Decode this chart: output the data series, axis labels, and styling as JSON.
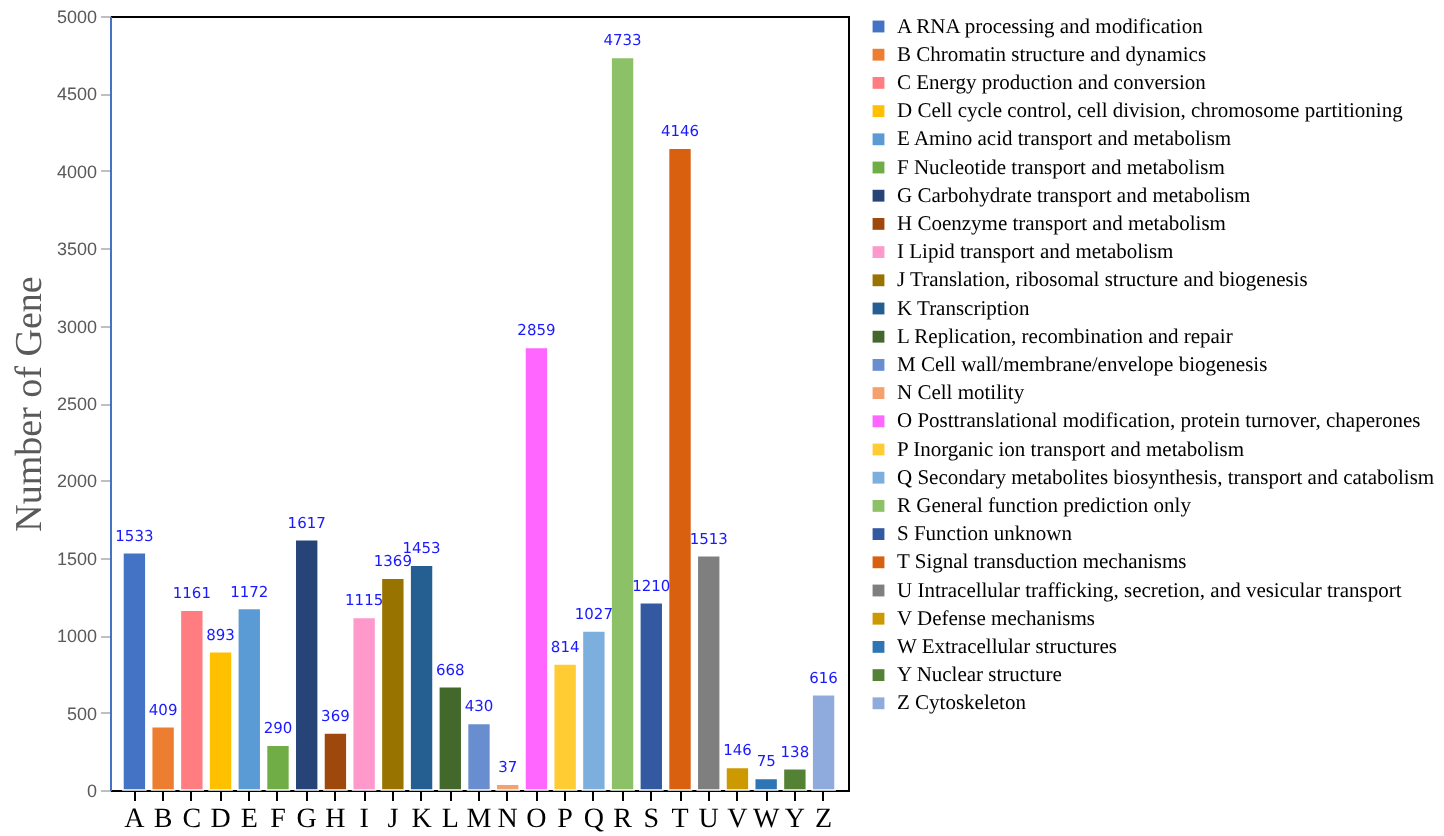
{
  "chart_data": {
    "type": "bar",
    "stacked": true,
    "ylabel": "Number of Gene",
    "categories": [
      "A",
      "B",
      "C",
      "D",
      "E",
      "F",
      "G",
      "H",
      "I",
      "J",
      "K",
      "L",
      "M",
      "N",
      "O",
      "P",
      "Q",
      "R",
      "S",
      "T",
      "U",
      "V",
      "W",
      "Y",
      "Z"
    ],
    "ylim": [
      0,
      5000
    ],
    "yticks": [
      0,
      500,
      1000,
      1500,
      2000,
      2500,
      3000,
      3500,
      4000,
      4500,
      5000
    ],
    "grid": false,
    "legend": "right",
    "data_labels": true,
    "series": [
      {
        "name": "A RNA processing and modification",
        "color": "#4472c4",
        "values": [
          1533,
          null,
          null,
          null,
          null,
          null,
          null,
          null,
          null,
          null,
          null,
          null,
          null,
          null,
          null,
          null,
          null,
          null,
          null,
          null,
          null,
          null,
          null,
          null,
          null
        ]
      },
      {
        "name": "B Chromatin structure and dynamics",
        "color": "#ed7d31",
        "values": [
          null,
          409,
          null,
          null,
          null,
          null,
          null,
          null,
          null,
          null,
          null,
          null,
          null,
          null,
          null,
          null,
          null,
          null,
          null,
          null,
          null,
          null,
          null,
          null,
          null
        ]
      },
      {
        "name": "C Energy production and conversion",
        "color": "#ff7c80",
        "values": [
          null,
          null,
          1161,
          null,
          null,
          null,
          null,
          null,
          null,
          null,
          null,
          null,
          null,
          null,
          null,
          null,
          null,
          null,
          null,
          null,
          null,
          null,
          null,
          null,
          null
        ]
      },
      {
        "name": "D Cell cycle control, cell division, chromosome partitioning",
        "color": "#ffc000",
        "values": [
          null,
          null,
          null,
          893,
          null,
          null,
          null,
          null,
          null,
          null,
          null,
          null,
          null,
          null,
          null,
          null,
          null,
          null,
          null,
          null,
          null,
          null,
          null,
          null,
          null
        ]
      },
      {
        "name": "E Amino acid transport and metabolism",
        "color": "#5b9bd5",
        "values": [
          null,
          null,
          null,
          null,
          1172,
          null,
          null,
          null,
          null,
          null,
          null,
          null,
          null,
          null,
          null,
          null,
          null,
          null,
          null,
          null,
          null,
          null,
          null,
          null,
          null
        ]
      },
      {
        "name": "F Nucleotide transport and metabolism",
        "color": "#70ad47",
        "values": [
          null,
          null,
          null,
          null,
          null,
          290,
          null,
          null,
          null,
          null,
          null,
          null,
          null,
          null,
          null,
          null,
          null,
          null,
          null,
          null,
          null,
          null,
          null,
          null,
          null
        ]
      },
      {
        "name": "G Carbohydrate transport and metabolism",
        "color": "#264478",
        "values": [
          null,
          null,
          null,
          null,
          null,
          null,
          1617,
          null,
          null,
          null,
          null,
          null,
          null,
          null,
          null,
          null,
          null,
          null,
          null,
          null,
          null,
          null,
          null,
          null,
          null
        ]
      },
      {
        "name": "H Coenzyme transport and metabolism",
        "color": "#9e480e",
        "values": [
          null,
          null,
          null,
          null,
          null,
          null,
          null,
          369,
          null,
          null,
          null,
          null,
          null,
          null,
          null,
          null,
          null,
          null,
          null,
          null,
          null,
          null,
          null,
          null,
          null
        ]
      },
      {
        "name": "I Lipid transport and metabolism",
        "color": "#ff99cc",
        "values": [
          null,
          null,
          null,
          null,
          null,
          null,
          null,
          null,
          1115,
          null,
          null,
          null,
          null,
          null,
          null,
          null,
          null,
          null,
          null,
          null,
          null,
          null,
          null,
          null,
          null
        ]
      },
      {
        "name": "J Translation, ribosomal structure and biogenesis",
        "color": "#997300",
        "values": [
          null,
          null,
          null,
          null,
          null,
          null,
          null,
          null,
          null,
          1369,
          null,
          null,
          null,
          null,
          null,
          null,
          null,
          null,
          null,
          null,
          null,
          null,
          null,
          null,
          null
        ]
      },
      {
        "name": "K Transcription",
        "color": "#255e91",
        "values": [
          null,
          null,
          null,
          null,
          null,
          null,
          null,
          null,
          null,
          null,
          1453,
          null,
          null,
          null,
          null,
          null,
          null,
          null,
          null,
          null,
          null,
          null,
          null,
          null,
          null
        ]
      },
      {
        "name": "L Replication, recombination and repair",
        "color": "#43682b",
        "values": [
          null,
          null,
          null,
          null,
          null,
          null,
          null,
          null,
          null,
          null,
          null,
          668,
          null,
          null,
          null,
          null,
          null,
          null,
          null,
          null,
          null,
          null,
          null,
          null,
          null
        ]
      },
      {
        "name": "M Cell wall/membrane/envelope biogenesis",
        "color": "#698ed0",
        "values": [
          null,
          null,
          null,
          null,
          null,
          null,
          null,
          null,
          null,
          null,
          null,
          null,
          430,
          null,
          null,
          null,
          null,
          null,
          null,
          null,
          null,
          null,
          null,
          null,
          null
        ]
      },
      {
        "name": "N Cell motility",
        "color": "#f4a16e",
        "values": [
          null,
          null,
          null,
          null,
          null,
          null,
          null,
          null,
          null,
          null,
          null,
          null,
          null,
          37,
          null,
          null,
          null,
          null,
          null,
          null,
          null,
          null,
          null,
          null,
          null
        ]
      },
      {
        "name": "O Posttranslational modification, protein turnover, chaperones",
        "color": "#ff66ff",
        "values": [
          null,
          null,
          null,
          null,
          null,
          null,
          null,
          null,
          null,
          null,
          null,
          null,
          null,
          null,
          2859,
          null,
          null,
          null,
          null,
          null,
          null,
          null,
          null,
          null,
          null
        ]
      },
      {
        "name": "P Inorganic ion transport and metabolism",
        "color": "#ffcc33",
        "values": [
          null,
          null,
          null,
          null,
          null,
          null,
          null,
          null,
          null,
          null,
          null,
          null,
          null,
          null,
          null,
          814,
          null,
          null,
          null,
          null,
          null,
          null,
          null,
          null,
          null
        ]
      },
      {
        "name": "Q Secondary metabolites biosynthesis, transport and catabolism",
        "color": "#7cafdd",
        "values": [
          null,
          null,
          null,
          null,
          null,
          null,
          null,
          null,
          null,
          null,
          null,
          null,
          null,
          null,
          null,
          null,
          1027,
          null,
          null,
          null,
          null,
          null,
          null,
          null,
          null
        ]
      },
      {
        "name": "R General function prediction only",
        "color": "#8cc168",
        "values": [
          null,
          null,
          null,
          null,
          null,
          null,
          null,
          null,
          null,
          null,
          null,
          null,
          null,
          null,
          null,
          null,
          null,
          4733,
          null,
          null,
          null,
          null,
          null,
          null,
          null
        ]
      },
      {
        "name": "S Function unknown",
        "color": "#335aa1",
        "values": [
          null,
          null,
          null,
          null,
          null,
          null,
          null,
          null,
          null,
          null,
          null,
          null,
          null,
          null,
          null,
          null,
          null,
          null,
          1210,
          null,
          null,
          null,
          null,
          null,
          null
        ]
      },
      {
        "name": "T Signal transduction mechanisms",
        "color": "#d9600f",
        "values": [
          null,
          null,
          null,
          null,
          null,
          null,
          null,
          null,
          null,
          null,
          null,
          null,
          null,
          null,
          null,
          null,
          null,
          null,
          null,
          4146,
          null,
          null,
          null,
          null,
          null
        ]
      },
      {
        "name": "U Intracellular trafficking, secretion, and vesicular transport",
        "color": "#7f7f7f",
        "values": [
          null,
          null,
          null,
          null,
          null,
          null,
          null,
          null,
          null,
          null,
          null,
          null,
          null,
          null,
          null,
          null,
          null,
          null,
          null,
          null,
          1513,
          null,
          null,
          null,
          null
        ]
      },
      {
        "name": "V Defense mechanisms",
        "color": "#cc9900",
        "values": [
          null,
          null,
          null,
          null,
          null,
          null,
          null,
          null,
          null,
          null,
          null,
          null,
          null,
          null,
          null,
          null,
          null,
          null,
          null,
          null,
          null,
          146,
          null,
          null,
          null
        ]
      },
      {
        "name": "W Extracellular structures",
        "color": "#2e75b6",
        "values": [
          null,
          null,
          null,
          null,
          null,
          null,
          null,
          null,
          null,
          null,
          null,
          null,
          null,
          null,
          null,
          null,
          null,
          null,
          null,
          null,
          null,
          null,
          75,
          null,
          null
        ]
      },
      {
        "name": "Y Nuclear structure",
        "color": "#548235",
        "values": [
          null,
          null,
          null,
          null,
          null,
          null,
          null,
          null,
          null,
          null,
          null,
          null,
          null,
          null,
          null,
          null,
          null,
          null,
          null,
          null,
          null,
          null,
          null,
          138,
          null
        ]
      },
      {
        "name": "Z Cytoskeleton",
        "color": "#8faadc",
        "values": [
          null,
          null,
          null,
          null,
          null,
          null,
          null,
          null,
          null,
          null,
          null,
          null,
          null,
          null,
          null,
          null,
          null,
          null,
          null,
          null,
          null,
          null,
          null,
          null,
          616
        ]
      }
    ]
  }
}
